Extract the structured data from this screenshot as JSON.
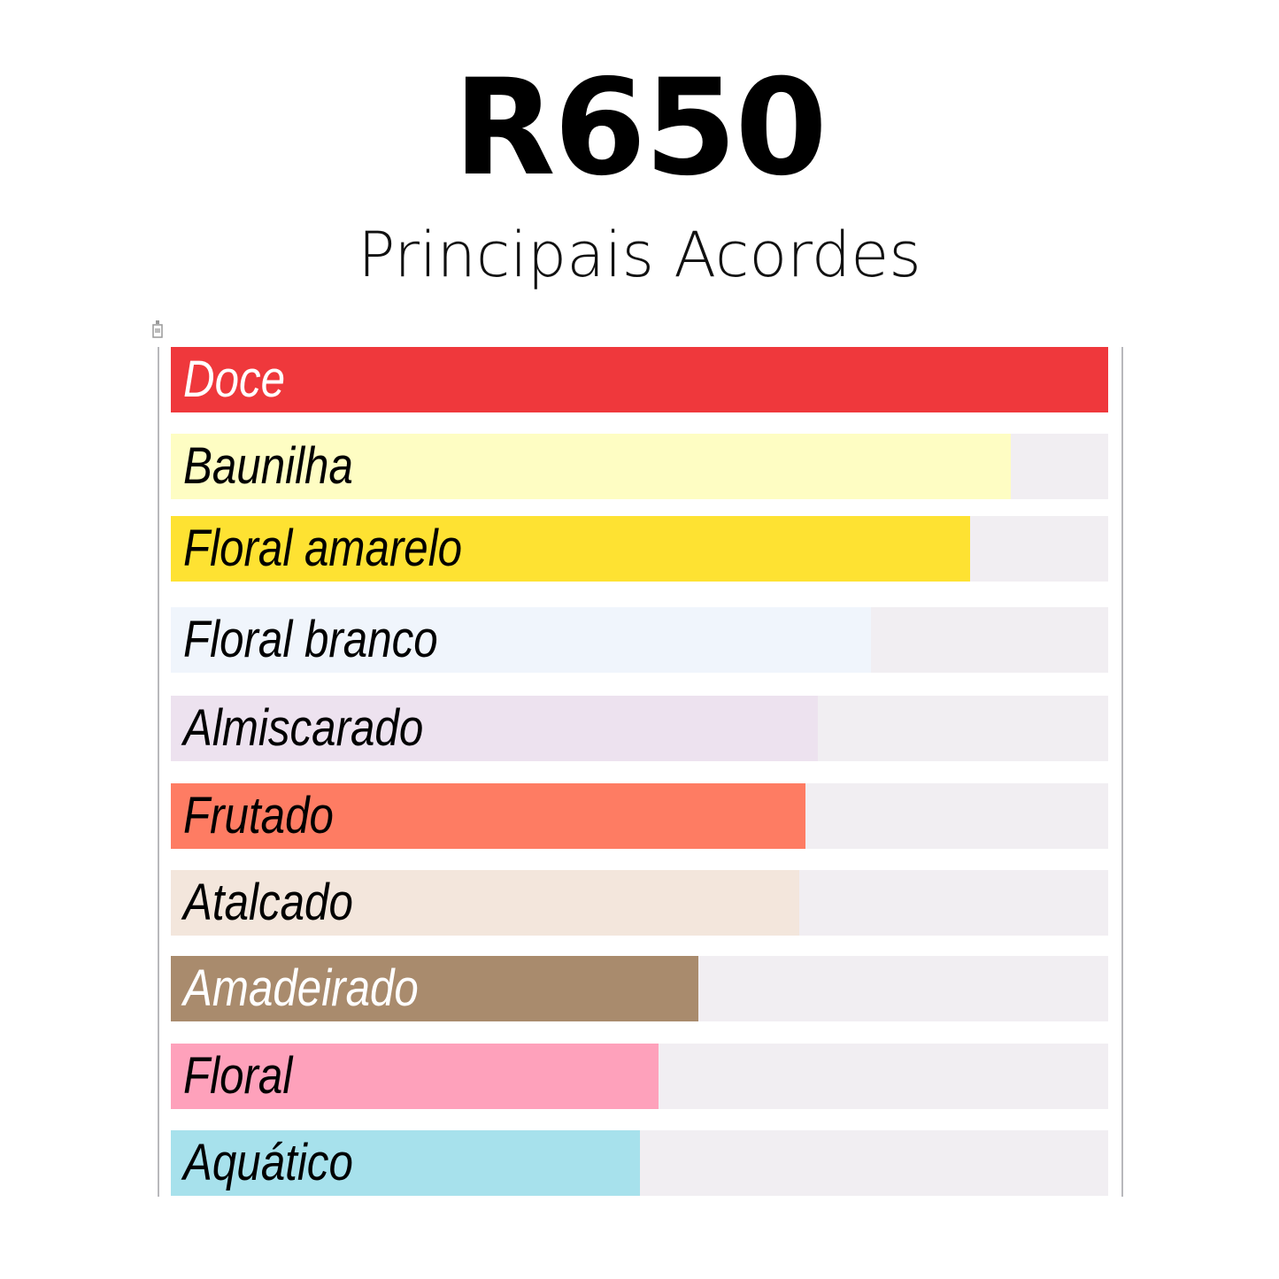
{
  "title": "R650",
  "subtitle": "Principais Acordes",
  "icon": "perfume-bottle-icon",
  "chart_data": {
    "type": "bar",
    "orientation": "horizontal",
    "xlim": [
      0,
      100
    ],
    "grid": false,
    "categories": [
      "Doce",
      "Baunilha",
      "Floral amarelo",
      "Floral branco",
      "Almiscarado",
      "Frutado",
      "Atalcado",
      "Amadeirado",
      "Floral",
      "Aquático"
    ],
    "values": [
      100,
      89.6,
      85.3,
      74.7,
      69.0,
      67.7,
      67.0,
      56.3,
      52.0,
      50.0
    ],
    "colors": [
      "#ef383c",
      "#fefdc3",
      "#fee232",
      "#f0f5fc",
      "#ede2ef",
      "#fe7c63",
      "#f3e6dc",
      "#a98b6d",
      "#fea1bb",
      "#a7e1ec"
    ],
    "label_colors": [
      "#ffffff",
      "#000000",
      "#000000",
      "#000000",
      "#000000",
      "#000000",
      "#000000",
      "#ffffff",
      "#000000",
      "#000000"
    ],
    "track_color": "#f1eef2"
  }
}
